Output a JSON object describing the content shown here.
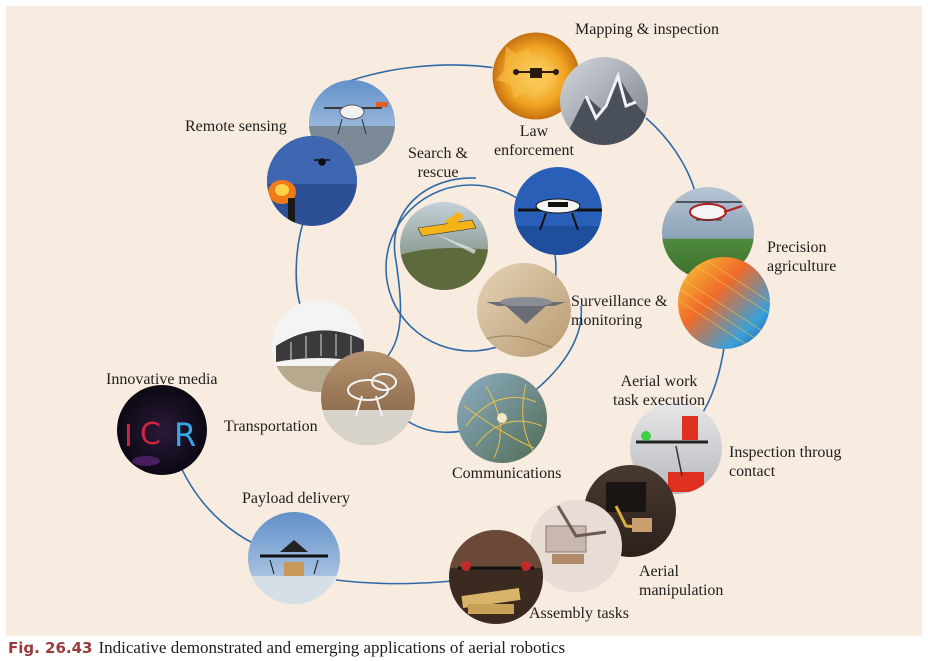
{
  "labels": {
    "mapping": "Mapping & inspection",
    "remote_sensing": "Remote sensing",
    "law": "Law\nenforcement",
    "search": "Search &\nrescue",
    "precision": "Precision\nagriculture",
    "surveillance": "Surveillance &\nmonitoring",
    "innovative": "Innovative media",
    "aerial_work": "Aerial work\ntask execution",
    "transportation": "Transportation",
    "inspection_contact": "Inspection throug\ncontact",
    "communications": "Communications",
    "payload": "Payload delivery",
    "aerial_manipulation": "Aerial\nmanipulation",
    "assembly": "Assembly tasks"
  },
  "photos": {
    "mapping_photo": "mapping-icon",
    "remote_sensing_photo": "drone-icon",
    "law_photo": "police-drone-icon",
    "search_photo": "rescue-plane-icon",
    "precision_photo": "helicopter-icon",
    "surveillance_photo": "uav-icon",
    "innovative_photo": "light-painting-icon",
    "transportation_photo": "airship-icon",
    "inspection_photo": "contact-drone-icon",
    "communications_photo": "network-icon",
    "payload_photo": "delivery-drone-icon",
    "manipulation_photo": "robot-arm-icon",
    "assembly_photo": "assembly-icon"
  },
  "caption": {
    "number": "Fig. 26.43",
    "text": "Indicative demonstrated and emerging applications of aerial robotics"
  },
  "colors": {
    "background": "#f8ebdf",
    "spiral": "#2f6aa5",
    "caption_number": "#9a3b3b"
  }
}
